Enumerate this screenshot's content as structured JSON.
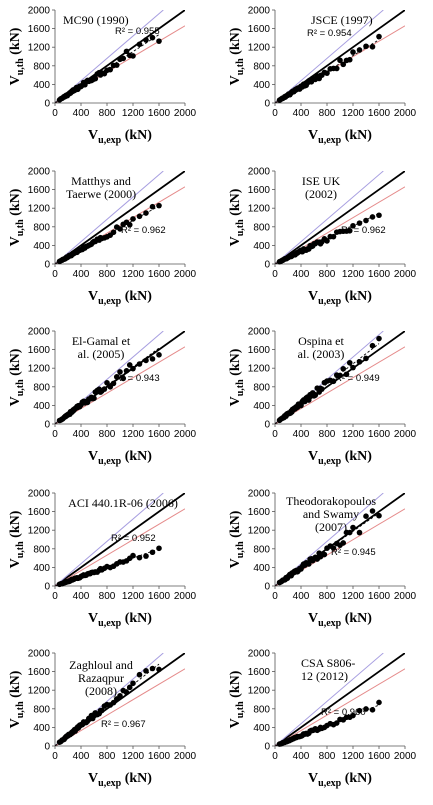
{
  "chart_data": [
    {
      "type": "scatter",
      "title_lines": [
        "MC90 (1990)"
      ],
      "r2": "R² = 0.955",
      "slope": 0.92,
      "spread": 0.1,
      "x_min_label": "0",
      "xlabel_base": "V",
      "xlabel_sub": "u,exp",
      "xlabel_unit": " (kN)",
      "ylabel_base": "V",
      "ylabel_sub": "u,th",
      "ylabel_unit": " (kN)",
      "xlim": [
        0,
        2000
      ],
      "ylim": [
        0,
        2000
      ],
      "xticks": [
        0,
        400,
        800,
        1200,
        1600,
        2000
      ],
      "yticks": [
        0,
        400,
        800,
        1200,
        1600,
        2000
      ],
      "reference_lines": [
        {
          "name": "1:1",
          "slope": 1.0,
          "color": "#000000"
        },
        {
          "name": "1:1.2",
          "slope": 1.2,
          "color": "#a79ee0"
        },
        {
          "name": "1:0.83",
          "slope": 0.83,
          "color": "#e58b8b"
        }
      ],
      "grid": false,
      "legend": "none"
    },
    {
      "type": "scatter",
      "title_lines": [
        "JSCE (1997)"
      ],
      "r2": "R² = 0.954",
      "slope": 0.85,
      "spread": 0.09,
      "x_min_label": "0",
      "xlabel_base": "V",
      "xlabel_sub": "u,exp",
      "xlabel_unit": " (kN)",
      "ylabel_base": "V",
      "ylabel_sub": "u,th",
      "ylabel_unit": " (kN)",
      "xlim": [
        0,
        2000
      ],
      "ylim": [
        0,
        2000
      ],
      "xticks": [
        0,
        400,
        800,
        1200,
        1600,
        2000
      ],
      "yticks": [
        0,
        400,
        800,
        1200,
        1600,
        2000
      ],
      "reference_lines": [
        {
          "name": "1:1",
          "slope": 1.0,
          "color": "#000000"
        },
        {
          "name": "1:1.2",
          "slope": 1.2,
          "color": "#a79ee0"
        },
        {
          "name": "1:0.83",
          "slope": 0.83,
          "color": "#e58b8b"
        }
      ],
      "grid": false,
      "legend": "none"
    },
    {
      "type": "scatter",
      "title_lines": [
        "Matthys and",
        "Taerwe (2000)"
      ],
      "r2": "R² = 0.962",
      "slope": 0.78,
      "spread": 0.08,
      "x_min_label": "0",
      "xlabel_base": "V",
      "xlabel_sub": "u,exp",
      "xlabel_unit": " (kN)",
      "ylabel_base": "V",
      "ylabel_sub": "u,th",
      "ylabel_unit": " (kN)",
      "xlim": [
        0,
        2000
      ],
      "ylim": [
        0,
        2000
      ],
      "xticks": [
        0,
        400,
        800,
        1200,
        1600,
        2000
      ],
      "yticks": [
        0,
        400,
        800,
        1200,
        1600,
        2000
      ],
      "reference_lines": [
        {
          "name": "1:1",
          "slope": 1.0,
          "color": "#000000"
        },
        {
          "name": "1:1.2",
          "slope": 1.2,
          "color": "#a79ee0"
        },
        {
          "name": "1:0.83",
          "slope": 0.83,
          "color": "#e58b8b"
        }
      ],
      "grid": false,
      "legend": "none"
    },
    {
      "type": "scatter",
      "title_lines": [
        "ISE UK",
        "(2002)"
      ],
      "r2": "R² = 0.962",
      "slope": 0.68,
      "spread": 0.09,
      "x_min_label": "0",
      "xlabel_base": "V",
      "xlabel_sub": "u,exp",
      "xlabel_unit": " (kN)",
      "ylabel_base": "V",
      "ylabel_sub": "u,th",
      "ylabel_unit": " (kN)",
      "xlim": [
        0,
        2000
      ],
      "ylim": [
        0,
        2000
      ],
      "xticks": [
        0,
        400,
        800,
        1200,
        1600,
        2000
      ],
      "yticks": [
        0,
        400,
        800,
        1200,
        1600,
        2000
      ],
      "reference_lines": [
        {
          "name": "1:1",
          "slope": 1.0,
          "color": "#000000"
        },
        {
          "name": "1:1.2",
          "slope": 1.2,
          "color": "#a79ee0"
        },
        {
          "name": "1:0.83",
          "slope": 0.83,
          "color": "#e58b8b"
        }
      ],
      "grid": false,
      "legend": "none"
    },
    {
      "type": "scatter",
      "title_lines": [
        "El-Gamal et",
        "al. (2005)"
      ],
      "r2": "R² = 0.943",
      "slope": 1.02,
      "spread": 0.1,
      "x_min_label": "0",
      "xlabel_base": "V",
      "xlabel_sub": "u,exp",
      "xlabel_unit": " (kN)",
      "ylabel_base": "V",
      "ylabel_sub": "u,th",
      "ylabel_unit": " (kN)",
      "xlim": [
        0,
        2000
      ],
      "ylim": [
        0,
        2000
      ],
      "xticks": [
        0,
        400,
        800,
        1200,
        1600,
        2000
      ],
      "yticks": [
        0,
        400,
        800,
        1200,
        1600,
        2000
      ],
      "reference_lines": [
        {
          "name": "1:1",
          "slope": 1.0,
          "color": "#000000"
        },
        {
          "name": "1:1.2",
          "slope": 1.2,
          "color": "#a79ee0"
        },
        {
          "name": "1:0.83",
          "slope": 0.83,
          "color": "#e58b8b"
        }
      ],
      "grid": false,
      "legend": "none"
    },
    {
      "type": "scatter",
      "title_lines": [
        "Ospina et",
        "al. (2003)"
      ],
      "r2": "R² = 0.949",
      "slope": 1.08,
      "spread": 0.1,
      "x_min_label": "0",
      "xlabel_base": "V",
      "xlabel_sub": "u,exp",
      "xlabel_unit": " (kN)",
      "ylabel_base": "V",
      "ylabel_sub": "u,th",
      "ylabel_unit": " (kN)",
      "xlim": [
        0,
        2000
      ],
      "ylim": [
        0,
        2000
      ],
      "xticks": [
        0,
        400,
        800,
        1200,
        1600,
        2000
      ],
      "yticks": [
        0,
        400,
        800,
        1200,
        1600,
        2000
      ],
      "reference_lines": [
        {
          "name": "1:1",
          "slope": 1.0,
          "color": "#000000"
        },
        {
          "name": "1:1.2",
          "slope": 1.2,
          "color": "#a79ee0"
        },
        {
          "name": "1:0.83",
          "slope": 0.83,
          "color": "#e58b8b"
        }
      ],
      "grid": false,
      "legend": "none"
    },
    {
      "type": "scatter",
      "title_lines": [
        "ACI 440.1R-06 (2006)"
      ],
      "r2": "R² = 0.952",
      "slope": 0.5,
      "spread": 0.09,
      "x_min_label": "0",
      "xlabel_base": "V",
      "xlabel_sub": "u,exp",
      "xlabel_unit": " (kN)",
      "ylabel_base": "V",
      "ylabel_sub": "u,th",
      "ylabel_unit": " (kN)",
      "xlim": [
        0,
        2000
      ],
      "ylim": [
        0,
        2000
      ],
      "xticks": [
        0,
        400,
        800,
        1200,
        1600,
        2000
      ],
      "yticks": [
        0,
        400,
        800,
        1200,
        1600,
        2000
      ],
      "reference_lines": [
        {
          "name": "1:1",
          "slope": 1.0,
          "color": "#000000"
        },
        {
          "name": "1:1.2",
          "slope": 1.2,
          "color": "#a79ee0"
        },
        {
          "name": "1:0.83",
          "slope": 0.83,
          "color": "#e58b8b"
        }
      ],
      "grid": false,
      "legend": "none"
    },
    {
      "type": "scatter",
      "title_lines": [
        "Theodorakopoulos",
        "and Swamy",
        "(2007)"
      ],
      "r2": "R² = 0.945",
      "slope": 0.98,
      "spread": 0.11,
      "x_min_label": "0",
      "xlabel_base": "V",
      "xlabel_sub": "u,exp",
      "xlabel_unit": " (kN)",
      "ylabel_base": "V",
      "ylabel_sub": "u,th",
      "ylabel_unit": " (kN)",
      "xlim": [
        0,
        2000
      ],
      "ylim": [
        0,
        2000
      ],
      "xticks": [
        0,
        400,
        800,
        1200,
        1600,
        2000
      ],
      "yticks": [
        0,
        400,
        800,
        1200,
        1600,
        2000
      ],
      "reference_lines": [
        {
          "name": "1:1",
          "slope": 1.0,
          "color": "#000000"
        },
        {
          "name": "1:1.2",
          "slope": 1.2,
          "color": "#a79ee0"
        },
        {
          "name": "1:0.83",
          "slope": 0.83,
          "color": "#e58b8b"
        }
      ],
      "grid": false,
      "legend": "none"
    },
    {
      "type": "scatter",
      "title_lines": [
        "Zaghloul and",
        "Razaqpur",
        "(2008)"
      ],
      "r2": "R² = 0.967",
      "slope": 1.1,
      "spread": 0.08,
      "x_min_label": "0",
      "xlabel_base": "V",
      "xlabel_sub": "u,exp",
      "xlabel_unit": " (kN)",
      "ylabel_base": "V",
      "ylabel_sub": "u,th",
      "ylabel_unit": " (kN)",
      "xlim": [
        0,
        2000
      ],
      "ylim": [
        0,
        2000
      ],
      "xticks": [
        0,
        400,
        800,
        1200,
        1600,
        2000
      ],
      "yticks": [
        0,
        400,
        800,
        1200,
        1600,
        2000
      ],
      "reference_lines": [
        {
          "name": "1:1",
          "slope": 1.0,
          "color": "#000000"
        },
        {
          "name": "1:1.2",
          "slope": 1.2,
          "color": "#a79ee0"
        },
        {
          "name": "1:0.83",
          "slope": 0.83,
          "color": "#e58b8b"
        }
      ],
      "grid": false,
      "legend": "none"
    },
    {
      "type": "scatter",
      "title_lines": [
        "CSA S806-",
        "12 (2012)"
      ],
      "r2": "R² = 0.960",
      "slope": 0.55,
      "spread": 0.09,
      "x_min_label": "0",
      "xlabel_base": "V",
      "xlabel_sub": "u,exp",
      "xlabel_unit": " (kN)",
      "ylabel_base": "V",
      "ylabel_sub": "u,th",
      "ylabel_unit": " (kN)",
      "xlim": [
        0,
        2000
      ],
      "ylim": [
        0,
        2000
      ],
      "xticks": [
        0,
        400,
        800,
        1200,
        1600,
        2000
      ],
      "yticks": [
        0,
        400,
        800,
        1200,
        1600,
        2000
      ],
      "reference_lines": [
        {
          "name": "1:1",
          "slope": 1.0,
          "color": "#000000"
        },
        {
          "name": "1:1.2",
          "slope": 1.2,
          "color": "#a79ee0"
        },
        {
          "name": "1:0.83",
          "slope": 0.83,
          "color": "#e58b8b"
        }
      ],
      "grid": false,
      "legend": "none"
    }
  ],
  "experimental_x": [
    70,
    90,
    110,
    120,
    140,
    150,
    160,
    170,
    180,
    190,
    200,
    210,
    220,
    230,
    240,
    250,
    260,
    270,
    280,
    290,
    300,
    310,
    320,
    330,
    340,
    350,
    360,
    380,
    400,
    420,
    440,
    460,
    480,
    500,
    520,
    540,
    560,
    580,
    600,
    620,
    650,
    680,
    700,
    720,
    760,
    800,
    850,
    900,
    950,
    1000,
    1050,
    1100,
    1150,
    1200,
    1300,
    1400,
    1500,
    1600
  ],
  "colors": {
    "marker": "#000000",
    "identity_line": "#000000",
    "upper_line": "#a79ee0",
    "lower_line": "#e58b8b",
    "trend_line": "#000000"
  }
}
